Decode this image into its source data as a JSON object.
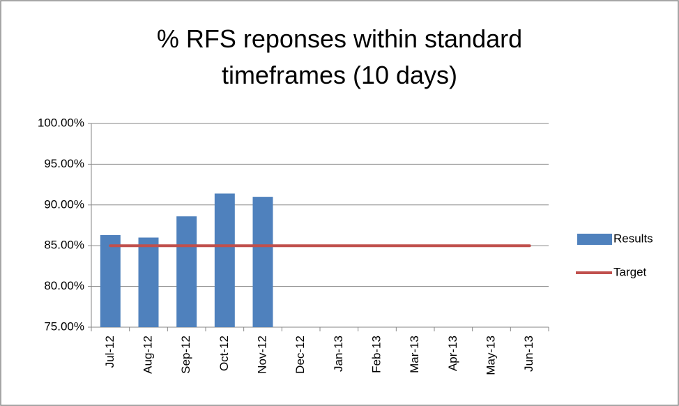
{
  "chart_data": {
    "type": "bar_line",
    "title": "% RFS reponses within standard timeframes (10 days)",
    "categories": [
      "Jul-12",
      "Aug-12",
      "Sep-12",
      "Oct-12",
      "Nov-12",
      "Dec-12",
      "Jan-13",
      "Feb-13",
      "Mar-13",
      "Apr-13",
      "May-13",
      "Jun-13"
    ],
    "series": [
      {
        "name": "Results",
        "type": "bar",
        "color": "#4f81bd",
        "values": [
          86.3,
          86.0,
          88.6,
          91.4,
          91.0,
          null,
          null,
          null,
          null,
          null,
          null,
          null
        ]
      },
      {
        "name": "Target",
        "type": "line",
        "color": "#c0504d",
        "values": [
          85,
          85,
          85,
          85,
          85,
          85,
          85,
          85,
          85,
          85,
          85,
          85
        ]
      }
    ],
    "ylim": [
      75,
      100
    ],
    "yticks": [
      {
        "value": 75,
        "label": "75.00%"
      },
      {
        "value": 80,
        "label": "80.00%"
      },
      {
        "value": 85,
        "label": "85.00%"
      },
      {
        "value": 90,
        "label": "90.00%"
      },
      {
        "value": 95,
        "label": "95.00%"
      },
      {
        "value": 100,
        "label": "100.00%"
      }
    ],
    "grid": true,
    "legend": "right"
  }
}
